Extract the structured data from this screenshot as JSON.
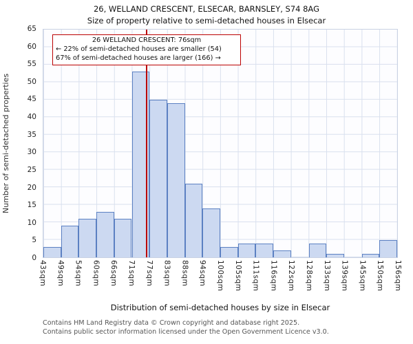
{
  "footer": {
    "line1": "Contains HM Land Registry data © Crown copyright and database right 2025.",
    "line2": "Contains public sector information licensed under the Open Government Licence v3.0."
  },
  "chart_data": {
    "type": "bar",
    "title": "26, WELLAND CRESCENT, ELSECAR, BARNSLEY, S74 8AG",
    "subtitle": "Size of property relative to semi-detached houses in Elsecar",
    "xlabel": "Distribution of semi-detached houses by size in Elsecar",
    "ylabel": "Number of semi-detached properties",
    "ylim": [
      0,
      65
    ],
    "y_tick_step": 5,
    "grid": true,
    "bin_edges_sqm": [
      43,
      49,
      54,
      60,
      66,
      71,
      77,
      83,
      88,
      94,
      100,
      105,
      111,
      116,
      122,
      128,
      133,
      139,
      145,
      150,
      156
    ],
    "tick_labels": [
      "43sqm",
      "49sqm",
      "54sqm",
      "60sqm",
      "66sqm",
      "71sqm",
      "77sqm",
      "83sqm",
      "88sqm",
      "94sqm",
      "100sqm",
      "105sqm",
      "111sqm",
      "116sqm",
      "122sqm",
      "128sqm",
      "133sqm",
      "139sqm",
      "145sqm",
      "150sqm",
      "156sqm"
    ],
    "values": [
      3,
      9,
      11,
      13,
      11,
      53,
      45,
      44,
      21,
      14,
      3,
      4,
      4,
      2,
      0,
      4,
      1,
      0,
      1,
      5
    ],
    "marker": {
      "value_sqm": 76,
      "label": "26 WELLAND CRESCENT: 76sqm"
    },
    "annotation": {
      "line1": "26 WELLAND CRESCENT: 76sqm",
      "line2": "← 22% of semi-detached houses are smaller (54)",
      "line3": "67% of semi-detached houses are larger (166) →"
    },
    "colors": {
      "bar_fill": "#ccd9f1",
      "bar_border": "#5b80c2",
      "grid": "#d9e0ee",
      "marker": "#bb0000"
    }
  }
}
